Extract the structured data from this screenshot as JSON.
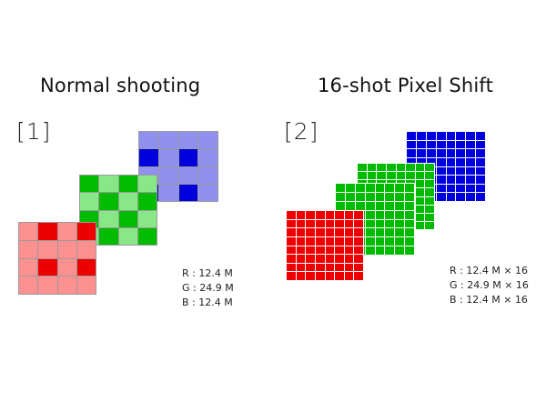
{
  "panels": {
    "left": {
      "tag": "[1]",
      "title": "Normal shooting",
      "stats": [
        "R : 12.4 M",
        "G : 24.9 M",
        "B : 12.4 M"
      ]
    },
    "right": {
      "tag": "[2]",
      "title": "16-shot Pixel Shift",
      "stats": [
        "R : 12.4 M × 16",
        "G : 24.9 M × 16",
        "B : 12.4 M × 16"
      ]
    }
  },
  "colors": {
    "red": "#ee0000",
    "red_light": "#ff9090",
    "green": "#00bb00",
    "green_light": "#88e888",
    "blue": "#0000dd",
    "blue_light": "#9090ee",
    "grid_line": "#9a9a9a",
    "fine_grid_line": "#ffffff"
  }
}
